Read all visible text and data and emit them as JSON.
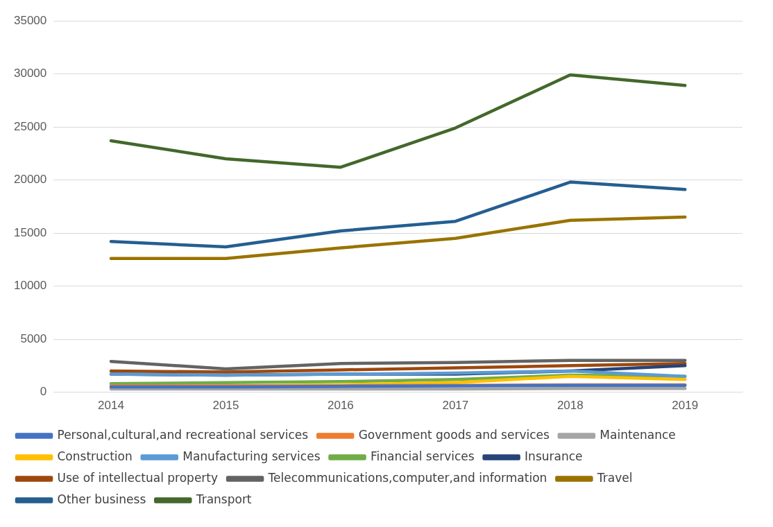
{
  "chart_data": {
    "type": "line",
    "categories": [
      "2014",
      "2015",
      "2016",
      "2017",
      "2018",
      "2019"
    ],
    "series": [
      {
        "name": "Personal,cultural,and recreational services",
        "color": "#4472c4",
        "values": [
          500,
          500,
          550,
          600,
          650,
          650
        ]
      },
      {
        "name": "Government goods and services",
        "color": "#ed7d31",
        "values": [
          600,
          600,
          600,
          650,
          700,
          700
        ]
      },
      {
        "name": "Maintenance",
        "color": "#a5a5a5",
        "values": [
          300,
          300,
          300,
          300,
          350,
          350
        ]
      },
      {
        "name": "Construction",
        "color": "#ffc000",
        "values": [
          500,
          600,
          700,
          900,
          1500,
          1200
        ]
      },
      {
        "name": "Manufacturing services",
        "color": "#5b9bd5",
        "values": [
          1700,
          1600,
          1700,
          1800,
          2000,
          1500
        ]
      },
      {
        "name": "Financial services",
        "color": "#70ad47",
        "values": [
          800,
          900,
          1000,
          1200,
          1600,
          1500
        ]
      },
      {
        "name": "Insurance",
        "color": "#264478",
        "values": [
          1700,
          1600,
          1700,
          1700,
          2000,
          2500
        ]
      },
      {
        "name": "Use of intellectual property",
        "color": "#9e480e",
        "values": [
          2000,
          1900,
          2100,
          2300,
          2500,
          2700
        ]
      },
      {
        "name": "Telecommunications,computer,and information",
        "color": "#636363",
        "values": [
          2900,
          2200,
          2700,
          2800,
          3000,
          3000
        ]
      },
      {
        "name": "Travel",
        "color": "#997300",
        "values": [
          12600,
          12600,
          13600,
          14500,
          16200,
          16500
        ]
      },
      {
        "name": "Other business",
        "color": "#255e91",
        "values": [
          14200,
          13700,
          15200,
          16100,
          19800,
          19100
        ]
      },
      {
        "name": "Transport",
        "color": "#43682b",
        "values": [
          23700,
          22000,
          21200,
          24900,
          29900,
          28900
        ]
      }
    ],
    "ylim": [
      0,
      35000
    ],
    "yticks": [
      0,
      5000,
      10000,
      15000,
      20000,
      25000,
      30000,
      35000
    ],
    "grid": "y",
    "legend": "bottom",
    "marker": "none",
    "line_style": "solid"
  }
}
